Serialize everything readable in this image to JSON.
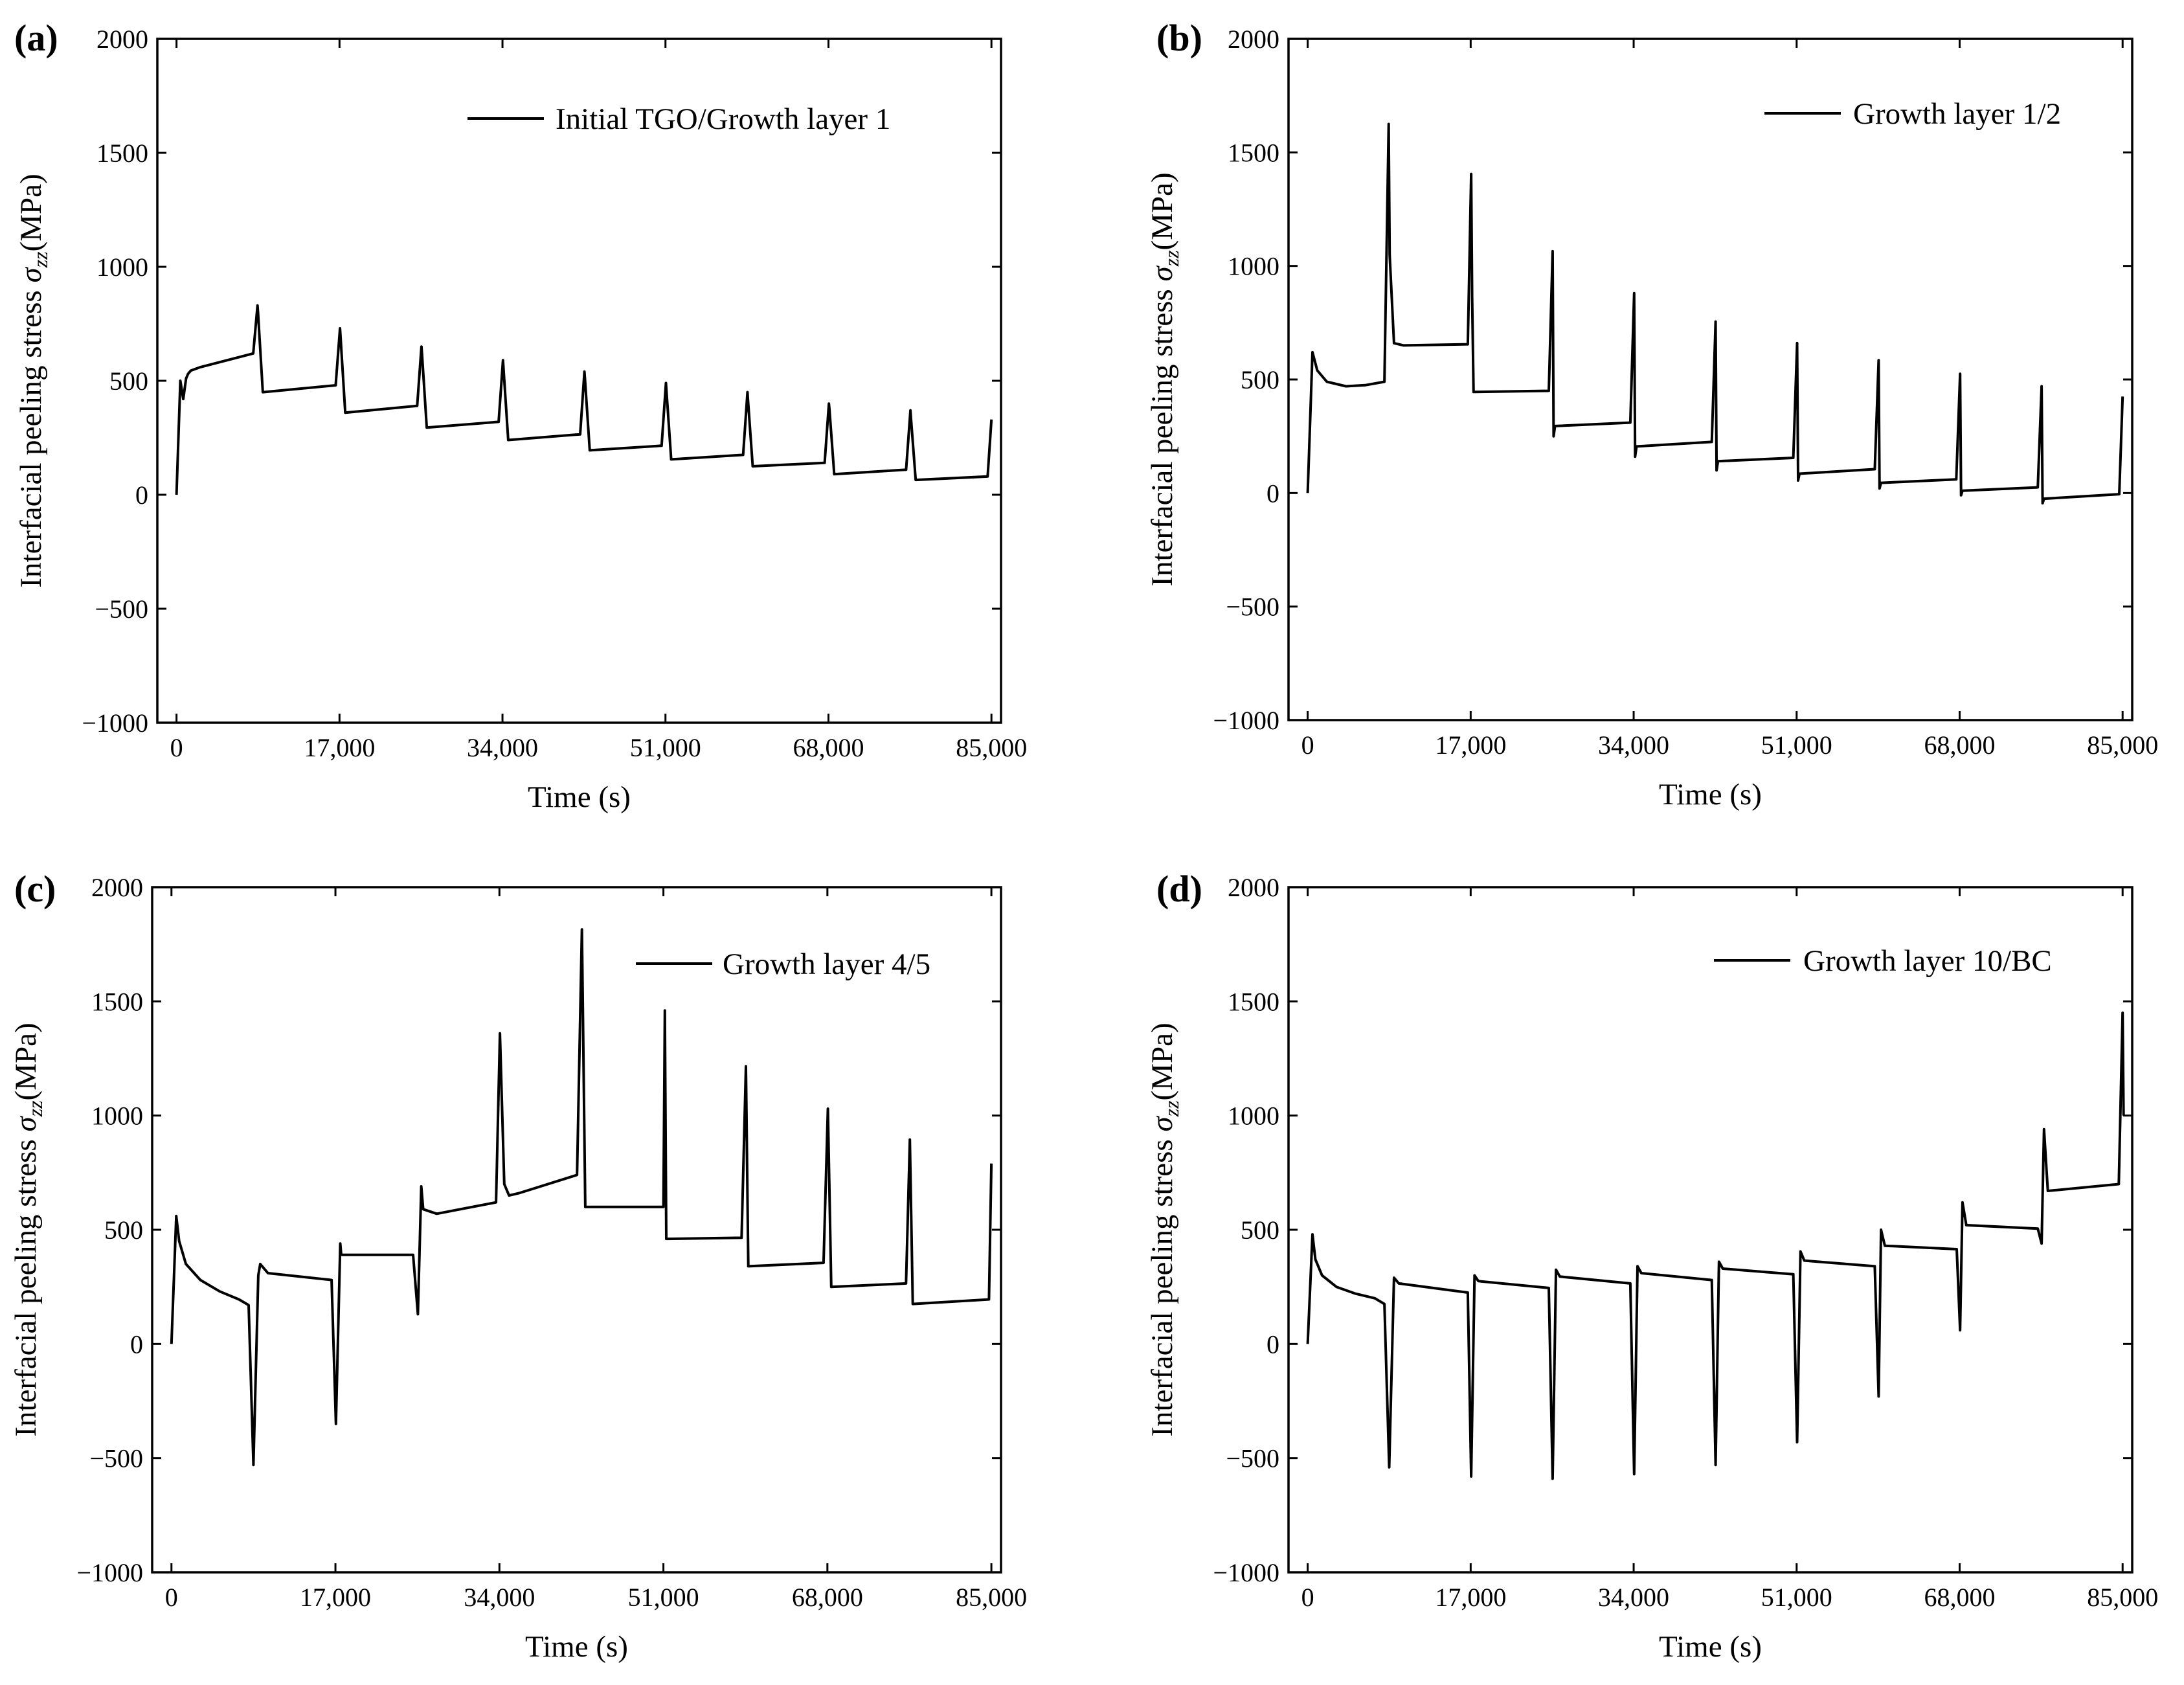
{
  "chart_data": [
    {
      "type": "line",
      "panel": "(a)",
      "xlabel": "Time (s)",
      "ylabel_main": "Interfacial peeling stress ",
      "ylabel_symbol": "σ",
      "ylabel_subscript": "zz",
      "ylabel_unit": "(MPa)",
      "xlim": [
        -2000,
        86000
      ],
      "ylim": [
        -1000,
        2000
      ],
      "xticks": [
        0,
        17000,
        34000,
        51000,
        68000,
        85000
      ],
      "xtick_labels": [
        "0",
        "17,000",
        "34,000",
        "51,000",
        "68,000",
        "85,000"
      ],
      "yticks": [
        -1000,
        -500,
        0,
        500,
        1000,
        1500,
        2000
      ],
      "ytick_labels": [
        "−1000",
        "−500",
        "0",
        "500",
        "1000",
        "1500",
        "2000"
      ],
      "series": [
        {
          "name": "Initial TGO/Growth layer 1",
          "x": [
            0,
            400,
            700,
            1000,
            1200,
            1500,
            2500,
            8000,
            8450,
            8500,
            9000,
            16600,
            17050,
            17100,
            17600,
            25100,
            25550,
            25600,
            26100,
            33600,
            34050,
            34100,
            34600,
            42100,
            42550,
            42600,
            43100,
            50600,
            51050,
            51100,
            51600,
            59100,
            59550,
            59600,
            60100,
            67600,
            68050,
            68100,
            68600,
            76100,
            76550,
            76600,
            77100,
            84600,
            85000
          ],
          "y": [
            0,
            500,
            420,
            510,
            530,
            545,
            560,
            620,
            830,
            800,
            450,
            480,
            730,
            700,
            360,
            390,
            650,
            620,
            295,
            320,
            590,
            560,
            240,
            265,
            540,
            510,
            195,
            215,
            490,
            460,
            155,
            175,
            450,
            420,
            125,
            140,
            400,
            375,
            90,
            110,
            370,
            340,
            65,
            80,
            330
          ]
        }
      ],
      "legend": {
        "label": "Initial TGO/Growth layer 1",
        "position": "top-right"
      }
    },
    {
      "type": "line",
      "panel": "(b)",
      "xlabel": "Time (s)",
      "ylabel_main": "Interfacial peeling stress ",
      "ylabel_symbol": "σ",
      "ylabel_subscript": "zz",
      "ylabel_unit": "(MPa)",
      "xlim": [
        -2000,
        86000
      ],
      "ylim": [
        -1000,
        2000
      ],
      "xticks": [
        0,
        17000,
        34000,
        51000,
        68000,
        85000
      ],
      "xtick_labels": [
        "0",
        "17,000",
        "34,000",
        "51,000",
        "68,000",
        "85,000"
      ],
      "yticks": [
        -1000,
        -500,
        0,
        500,
        1000,
        1500,
        2000
      ],
      "ytick_labels": [
        "−1000",
        "−500",
        "0",
        "500",
        "1000",
        "1500",
        "2000"
      ],
      "series": [
        {
          "name": "Growth layer 1/2",
          "x": [
            0,
            500,
            1000,
            2000,
            4000,
            6000,
            8000,
            8450,
            8550,
            9000,
            10000,
            16700,
            17050,
            17150,
            17300,
            25150,
            25550,
            25650,
            25800,
            33650,
            34050,
            34150,
            34300,
            42150,
            42550,
            42650,
            42800,
            50650,
            51050,
            51150,
            51300,
            59150,
            59550,
            59650,
            59800,
            67650,
            68050,
            68150,
            68300,
            76150,
            76550,
            76650,
            76800,
            84650,
            85000
          ],
          "y": [
            0,
            620,
            540,
            490,
            470,
            475,
            490,
            1625,
            1050,
            660,
            650,
            655,
            1405,
            860,
            445,
            450,
            1065,
            250,
            295,
            310,
            880,
            160,
            205,
            225,
            755,
            100,
            140,
            155,
            660,
            55,
            85,
            105,
            585,
            20,
            45,
            60,
            525,
            -10,
            10,
            25,
            470,
            -45,
            -25,
            -5,
            425
          ]
        }
      ],
      "legend": {
        "label": "Growth layer 1/2",
        "position": "top-right"
      }
    },
    {
      "type": "line",
      "panel": "(c)",
      "xlabel": "Time (s)",
      "ylabel_main": "Interfacial peeling stress ",
      "ylabel_symbol": "σ",
      "ylabel_subscript": "zz",
      "ylabel_unit": "(MPa)",
      "xlim": [
        -2000,
        86000
      ],
      "ylim": [
        -1000,
        2000
      ],
      "xticks": [
        0,
        17000,
        34000,
        51000,
        68000,
        85000
      ],
      "xtick_labels": [
        "0",
        "17,000",
        "34,000",
        "51,000",
        "68,000",
        "85,000"
      ],
      "yticks": [
        -1000,
        -500,
        0,
        500,
        1000,
        1500,
        2000
      ],
      "ytick_labels": [
        "−1000",
        "−500",
        "0",
        "500",
        "1000",
        "1500",
        "2000"
      ],
      "series": [
        {
          "name": "Growth layer 4/5",
          "x": [
            0,
            500,
            800,
            1500,
            3000,
            5000,
            7000,
            8000,
            8500,
            9000,
            9200,
            10000,
            16600,
            17050,
            17500,
            17600,
            25050,
            25550,
            25900,
            26100,
            27500,
            33650,
            34050,
            34500,
            35000,
            36000,
            42050,
            42550,
            42900,
            51000,
            51150,
            51300,
            59100,
            59550,
            59800,
            67600,
            68050,
            68400,
            76150,
            76550,
            76850,
            84750,
            85000
          ],
          "y": [
            0,
            560,
            450,
            350,
            280,
            230,
            195,
            170,
            -530,
            300,
            350,
            310,
            280,
            -350,
            440,
            390,
            390,
            130,
            690,
            590,
            570,
            620,
            1360,
            700,
            650,
            660,
            740,
            1815,
            600,
            600,
            1460,
            460,
            465,
            1215,
            340,
            355,
            1030,
            250,
            265,
            895,
            175,
            195,
            790
          ]
        }
      ],
      "legend": {
        "label": "Growth layer 4/5",
        "position": "top-right"
      }
    },
    {
      "type": "line",
      "panel": "(d)",
      "xlabel": "Time (s)",
      "ylabel_main": "Interfacial peeling stress ",
      "ylabel_symbol": "σ",
      "ylabel_subscript": "zz",
      "ylabel_unit": "(MPa)",
      "xlim": [
        -2000,
        86000
      ],
      "ylim": [
        -1000,
        2000
      ],
      "xticks": [
        0,
        17000,
        34000,
        51000,
        68000,
        85000
      ],
      "xtick_labels": [
        "0",
        "17,000",
        "34,000",
        "51,000",
        "68,000",
        "85,000"
      ],
      "yticks": [
        -1000,
        -500,
        0,
        500,
        1000,
        1500,
        2000
      ],
      "ytick_labels": [
        "−1000",
        "−500",
        "0",
        "500",
        "1000",
        "1500",
        "2000"
      ],
      "series": [
        {
          "name": "Growth layer 10/BC",
          "x": [
            0,
            500,
            800,
            1500,
            3000,
            5000,
            7000,
            8000,
            8500,
            9000,
            9500,
            16700,
            17050,
            17400,
            17800,
            25150,
            25550,
            25900,
            26300,
            33650,
            34050,
            34400,
            34800,
            42150,
            42550,
            42900,
            43300,
            50650,
            51050,
            51400,
            51800,
            59150,
            59550,
            59800,
            60200,
            67700,
            68050,
            68300,
            68700,
            76150,
            76550,
            76800,
            77200,
            84600,
            85000,
            85100
          ],
          "y": [
            0,
            480,
            370,
            300,
            250,
            220,
            200,
            175,
            -540,
            290,
            265,
            225,
            -580,
            300,
            275,
            245,
            -590,
            325,
            295,
            265,
            -570,
            340,
            310,
            280,
            -530,
            360,
            330,
            305,
            -430,
            405,
            365,
            340,
            -230,
            500,
            430,
            415,
            60,
            620,
            520,
            505,
            440,
            940,
            670,
            700,
            1450,
            1000
          ]
        }
      ],
      "legend": {
        "label": "Growth layer 10/BC",
        "position": "top-right"
      }
    }
  ]
}
